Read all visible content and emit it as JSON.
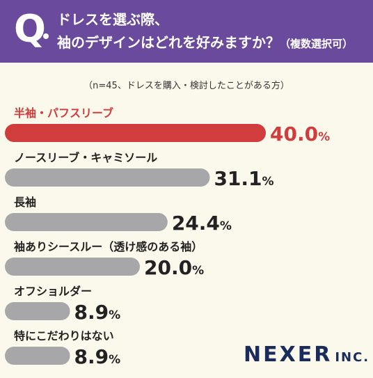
{
  "header": {
    "q_mark": "Q",
    "line1": "ドレスを選ぶ際、",
    "line2": "袖のデザインはどれを好みますか？",
    "note": "（複数選択可）"
  },
  "sample_note": "（n=45、ドレスを購入・検討したことがある方）",
  "logo": {
    "name": "NEXER",
    "suffix": "INC."
  },
  "colors": {
    "highlight": "#d13c3c",
    "bar": "#a7a7aa",
    "header": "#6a4a9c",
    "text": "#222222"
  },
  "chart_data": {
    "type": "bar",
    "orientation": "horizontal",
    "unit": "%",
    "categories": [
      "半袖・パフスリーブ",
      "ノースリーブ・キャミソール",
      "長袖",
      "袖ありシースルー（透け感のある袖）",
      "オフショルダー",
      "特にこだわりはない"
    ],
    "values": [
      40.0,
      31.1,
      24.4,
      20.0,
      8.9,
      8.9
    ],
    "labels": [
      "40.0",
      "31.1",
      "24.4",
      "20.0",
      "8.9",
      "8.9"
    ],
    "highlight_index": 0,
    "xlim": [
      0,
      40
    ]
  }
}
